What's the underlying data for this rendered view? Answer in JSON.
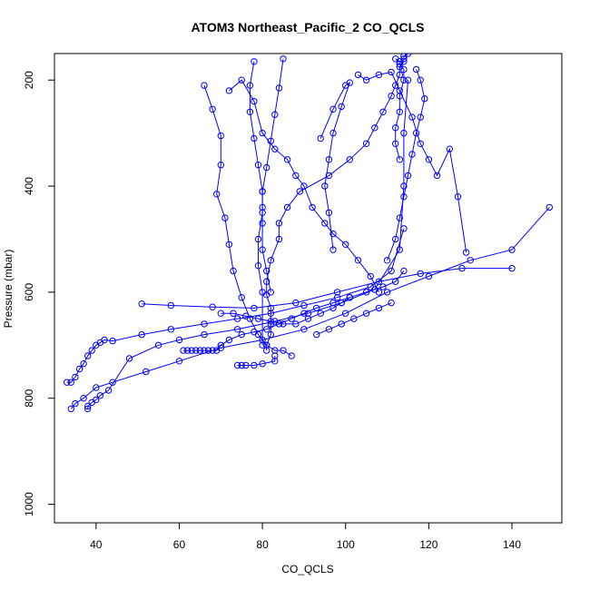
{
  "chart_data": {
    "type": "line",
    "title": "ATOM3 Northeast_Pacific_2 CO_QCLS",
    "xlabel": "CO_QCLS",
    "ylabel": "Pressure (mbar)",
    "xlim": [
      30,
      152
    ],
    "ylim": [
      1035,
      150
    ],
    "y_reversed": true,
    "xticks": [
      "40",
      "60",
      "80",
      "100",
      "120",
      "140"
    ],
    "yticks": [
      "200",
      "400",
      "600",
      "800",
      "1000"
    ],
    "grid": false,
    "legend": "none",
    "color": "#0000ff",
    "marker": "open-circle",
    "series": [
      {
        "x": [
          81,
          81,
          82,
          82,
          82,
          81,
          81,
          82,
          84,
          84,
          86,
          89,
          96,
          101,
          105,
          107,
          109,
          111,
          112,
          113,
          113,
          114,
          114,
          114,
          115
        ],
        "y": [
          710,
          700,
          680,
          660,
          630,
          605,
          580,
          540,
          500,
          470,
          440,
          410,
          380,
          350,
          320,
          290,
          260,
          230,
          210,
          190,
          175,
          165,
          160,
          155,
          150
        ]
      },
      {
        "x": [
          61,
          62,
          63,
          64,
          65,
          66,
          67,
          68,
          69,
          70,
          72,
          75,
          78,
          81,
          84,
          87,
          90,
          93,
          97,
          101,
          105,
          109,
          112,
          114
        ],
        "y": [
          710,
          710,
          710,
          710,
          710,
          710,
          710,
          710,
          710,
          700,
          690,
          680,
          675,
          670,
          660,
          650,
          640,
          630,
          620,
          610,
          600,
          590,
          580,
          560
        ]
      },
      {
        "x": [
          38,
          38,
          39,
          40,
          41,
          43,
          48,
          55,
          60,
          66,
          74,
          83,
          91,
          99,
          107,
          113,
          114,
          114,
          115
        ],
        "y": [
          820,
          815,
          808,
          803,
          795,
          785,
          725,
          700,
          690,
          680,
          670,
          655,
          640,
          620,
          595,
          520,
          400,
          300,
          200
        ]
      },
      {
        "x": [
          33,
          34,
          35,
          36,
          37,
          38,
          39,
          40,
          41,
          42,
          44,
          51,
          58,
          66,
          74,
          82,
          90,
          98,
          106,
          111,
          114
        ],
        "y": [
          770,
          770,
          760,
          745,
          735,
          720,
          710,
          700,
          695,
          690,
          692,
          680,
          670,
          660,
          650,
          640,
          625,
          610,
          590,
          560,
          480
        ]
      },
      {
        "x": [
          34,
          35,
          37,
          40,
          44,
          52,
          60,
          70,
          80,
          90,
          100,
          110,
          120,
          130,
          140,
          149
        ],
        "y": [
          820,
          810,
          800,
          780,
          770,
          750,
          730,
          705,
          690,
          670,
          640,
          600,
          570,
          540,
          520,
          440
        ]
      },
      {
        "x": [
          51,
          58,
          68,
          78,
          88,
          98,
          108,
          118,
          128,
          140
        ],
        "y": [
          622,
          625,
          628,
          630,
          620,
          600,
          580,
          565,
          555,
          555
        ]
      },
      {
        "x": [
          74,
          75,
          76,
          78,
          80,
          83,
          83
        ],
        "y": [
          738,
          738,
          738,
          738,
          735,
          730,
          720
        ]
      },
      {
        "x": [
          78,
          77,
          77,
          78,
          79,
          80,
          80,
          79,
          79,
          80,
          80
        ],
        "y": [
          165,
          210,
          260,
          310,
          360,
          410,
          450,
          500,
          550,
          600,
          700
        ]
      },
      {
        "x": [
          66,
          68,
          70,
          70,
          69,
          71,
          72,
          73,
          75,
          77,
          79,
          81,
          83,
          85,
          87
        ],
        "y": [
          210,
          255,
          305,
          360,
          415,
          460,
          510,
          560,
          610,
          650,
          680,
          700,
          710,
          710,
          720
        ]
      },
      {
        "x": [
          72,
          75,
          78,
          80,
          83,
          86,
          88,
          90,
          92,
          95,
          97,
          100,
          103,
          106,
          108
        ],
        "y": [
          220,
          200,
          240,
          300,
          330,
          350,
          380,
          400,
          440,
          470,
          490,
          510,
          540,
          570,
          600
        ]
      },
      {
        "x": [
          94,
          97,
          100,
          101,
          99,
          97,
          96,
          95,
          96,
          97
        ],
        "y": [
          310,
          255,
          210,
          205,
          250,
          300,
          350,
          400,
          450,
          520
        ]
      },
      {
        "x": [
          103,
          105,
          108,
          111,
          113,
          116,
          118,
          120,
          122,
          125,
          127,
          129
        ],
        "y": [
          190,
          200,
          190,
          185,
          220,
          270,
          320,
          350,
          380,
          330,
          420,
          525
        ]
      },
      {
        "x": [
          117,
          118,
          119,
          118,
          117,
          116,
          115,
          114,
          113,
          112,
          110
        ],
        "y": [
          180,
          200,
          235,
          270,
          300,
          340,
          380,
          420,
          460,
          500,
          540
        ]
      },
      {
        "x": [
          113,
          112,
          112,
          113,
          113,
          114,
          114,
          113,
          113,
          112
        ],
        "y": [
          350,
          320,
          290,
          260,
          230,
          200,
          180,
          170,
          165,
          160
        ]
      },
      {
        "x": [
          85,
          84,
          83,
          82,
          81,
          80,
          80,
          80,
          80,
          81,
          82
        ],
        "y": [
          160,
          215,
          265,
          315,
          365,
          410,
          440,
          470,
          520,
          560,
          600
        ]
      },
      {
        "x": [
          70,
          73,
          76,
          79,
          82,
          85,
          88,
          91,
          94,
          97,
          99,
          101
        ],
        "y": [
          640,
          640,
          645,
          650,
          655,
          660,
          660,
          650,
          640,
          630,
          620,
          610
        ]
      },
      {
        "x": [
          93,
          96,
          99,
          102,
          105,
          108,
          111
        ],
        "y": [
          680,
          670,
          660,
          650,
          640,
          630,
          620
        ]
      }
    ]
  }
}
